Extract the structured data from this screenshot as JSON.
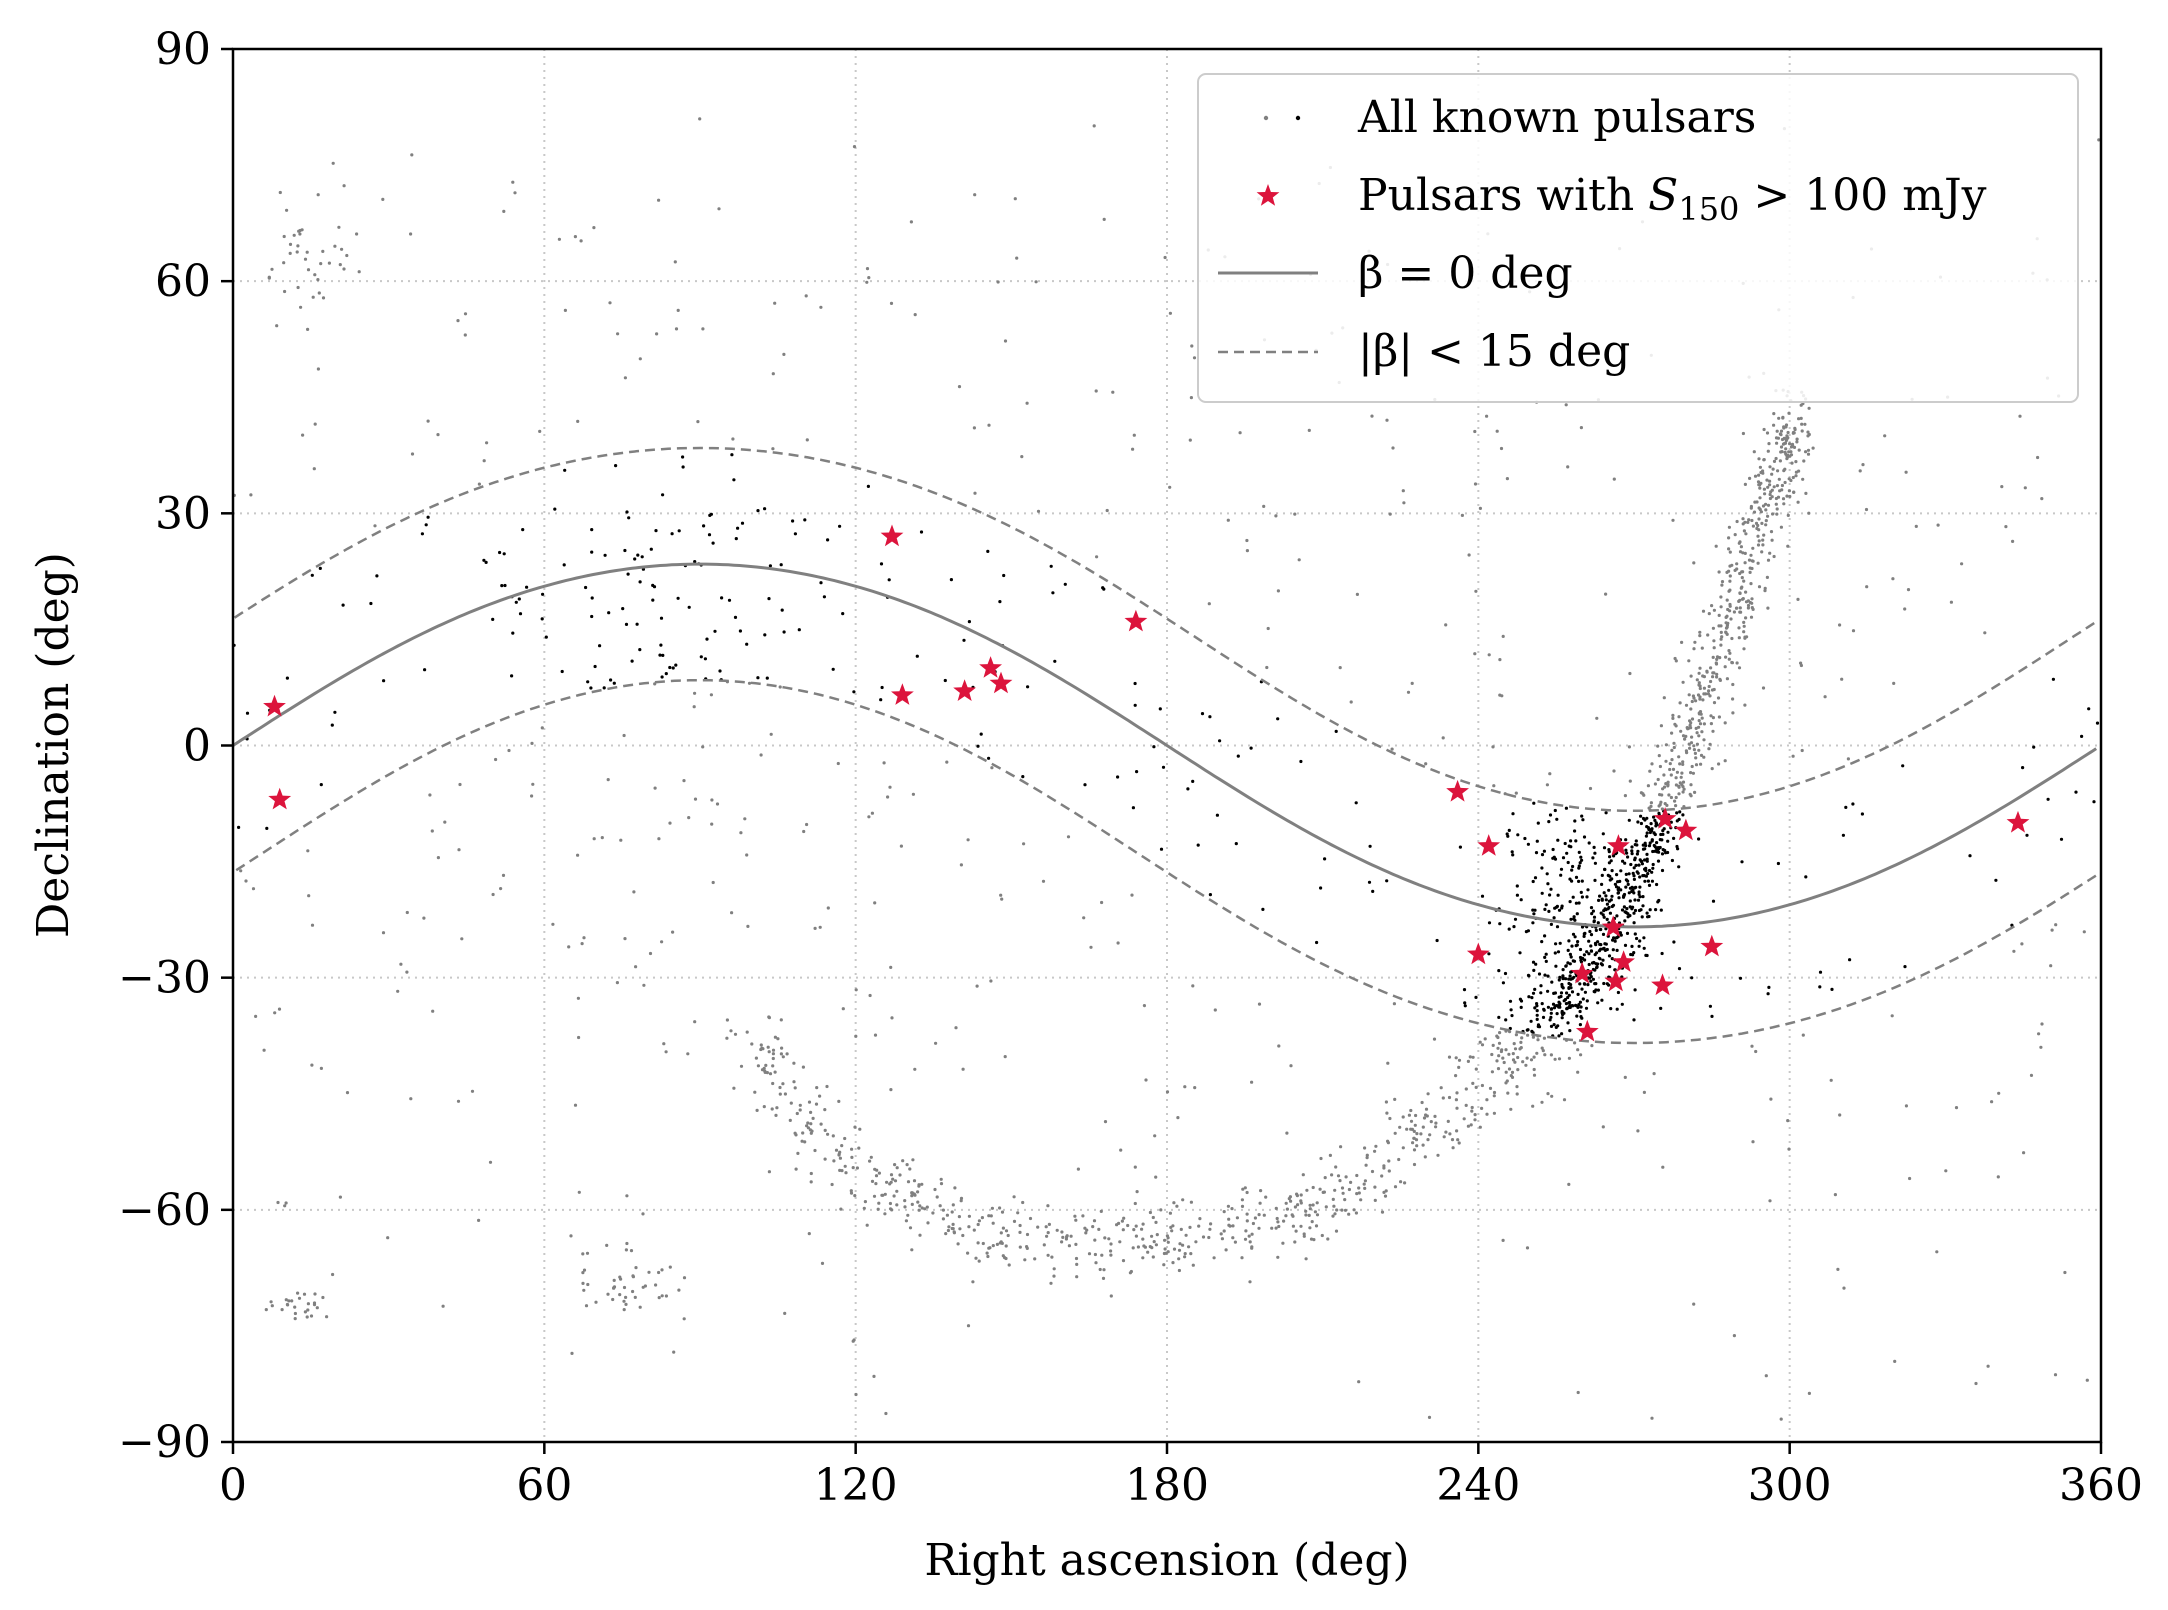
{
  "chart_data": {
    "type": "scatter",
    "title": "",
    "xlabel": "Right ascension (deg)",
    "ylabel": "Declination (deg)",
    "xlim": [
      0,
      360
    ],
    "ylim": [
      -90,
      90
    ],
    "xticks": [
      0,
      60,
      120,
      180,
      240,
      300,
      360
    ],
    "yticks": [
      -90,
      -60,
      -30,
      0,
      30,
      60,
      90
    ],
    "xtick_labels": [
      "0",
      "60",
      "120",
      "180",
      "240",
      "300",
      "360"
    ],
    "ytick_labels": [
      "−90",
      "−60",
      "−30",
      "0",
      "30",
      "60",
      "90"
    ],
    "grid": true,
    "grid_style": "dotted",
    "legend_position": "top-right",
    "colors": {
      "all_pulsars_outside": "#808080",
      "all_pulsars_inside": "#000000",
      "bright_pulsars": "#dc143c",
      "ecliptic": "#808080"
    },
    "legend": [
      {
        "key": "all",
        "label": "All known pulsars",
        "marker": "dot"
      },
      {
        "key": "bright",
        "label_prefix": "Pulsars with ",
        "label_var": "S",
        "label_sub": "150",
        "label_suffix": " > 100 mJy",
        "marker": "star"
      },
      {
        "key": "ecliptic",
        "label": "β = 0 deg",
        "marker": "solid-line"
      },
      {
        "key": "band",
        "label": "|β| < 15 deg",
        "marker": "dashed-line"
      }
    ],
    "series": [
      {
        "key": "bright",
        "marker": "star",
        "points": [
          [
            8,
            5
          ],
          [
            9,
            -7
          ],
          [
            127,
            27
          ],
          [
            129,
            6.5
          ],
          [
            141,
            7
          ],
          [
            146,
            10
          ],
          [
            148,
            8
          ],
          [
            174,
            16
          ],
          [
            236,
            -6
          ],
          [
            240,
            -27
          ],
          [
            242,
            -13
          ],
          [
            260,
            -29.5
          ],
          [
            261,
            -37
          ],
          [
            266,
            -23.5
          ],
          [
            266.5,
            -30.5
          ],
          [
            267,
            -13
          ],
          [
            268,
            -28
          ],
          [
            275.5,
            -31
          ],
          [
            276,
            -9.5
          ],
          [
            280,
            -11
          ],
          [
            285,
            -26
          ],
          [
            344,
            -10
          ]
        ]
      },
      {
        "key": "all",
        "marker": "dot",
        "description_scale": "approx 2600 points; dense galactic-plane band from about (100,-35) through (140,-62) and (200,-58) to (265,-25) and (300,40); points inside |beta|<15 deg drawn black, outside drawn grey"
      }
    ],
    "lines": [
      {
        "key": "ecliptic",
        "equation": "dec = atan(sin(ra) * tan(23.44 deg))",
        "style": "solid"
      },
      {
        "key": "band_upper",
        "equation": "ecliptic latitude +15 deg",
        "style": "dashed"
      },
      {
        "key": "band_lower",
        "equation": "ecliptic latitude -15 deg",
        "style": "dashed"
      }
    ]
  }
}
